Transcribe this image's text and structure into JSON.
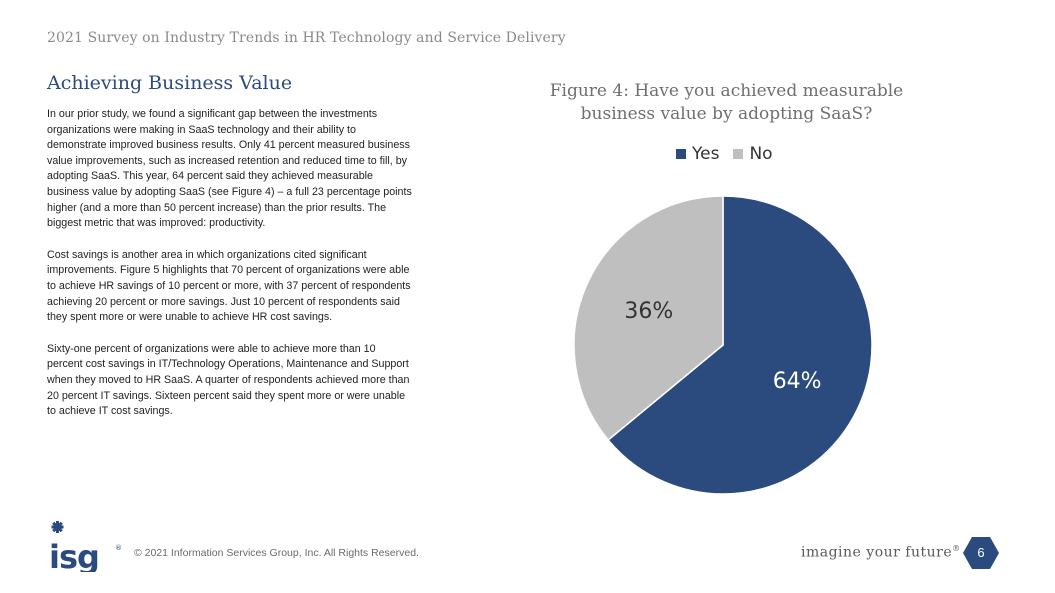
{
  "header": {
    "title": "2021 Survey on Industry Trends in HR Technology and Service Delivery"
  },
  "section": {
    "title": "Achieving Business Value",
    "paragraphs": [
      "In our prior study, we found a significant gap between the investments organizations were making in SaaS technology and their ability to demonstrate improved business results. Only 41 percent measured business value improvements, such as increased retention and reduced time to fill, by adopting SaaS. This year, 64 percent said they achieved measurable business value by adopting SaaS (see Figure 4) – a full 23 percentage points higher (and a more than 50 percent increase) than the prior results. The biggest metric that was improved: productivity.",
      "Cost savings is another area in which organizations cited significant improvements. Figure 5 highlights that 70 percent of organizations were able to achieve HR savings of 10 percent or more, with 37 percent of respondents achieving 20 percent or more savings. Just 10 percent of respondents said they spent more or were unable to achieve HR cost savings.",
      "Sixty-one percent of organizations were able to achieve more than 10 percent cost savings in IT/Technology Operations, Maintenance and Support when they moved to HR SaaS. A quarter of respondents achieved more than 20 percent IT savings. Sixteen percent said they spent more or were unable to achieve IT cost savings."
    ]
  },
  "chart_data": {
    "type": "pie",
    "title": "Figure 4: Have you achieved measurable business value by adopting SaaS?",
    "legend_position": "top",
    "slices": [
      {
        "label": "Yes",
        "value": 64,
        "display": "64%",
        "color": "#2b4a7e"
      },
      {
        "label": "No",
        "value": 36,
        "display": "36%",
        "color": "#bfbfbf"
      }
    ]
  },
  "footer": {
    "logo_text": "ISG",
    "copyright": "© 2021 Information Services Group, Inc. All Rights Reserved.",
    "tagline": "imagine your future",
    "tagline_mark": "®",
    "page_number": "6"
  },
  "colors": {
    "accent": "#2b4a7e",
    "muted": "#bfbfbf"
  }
}
